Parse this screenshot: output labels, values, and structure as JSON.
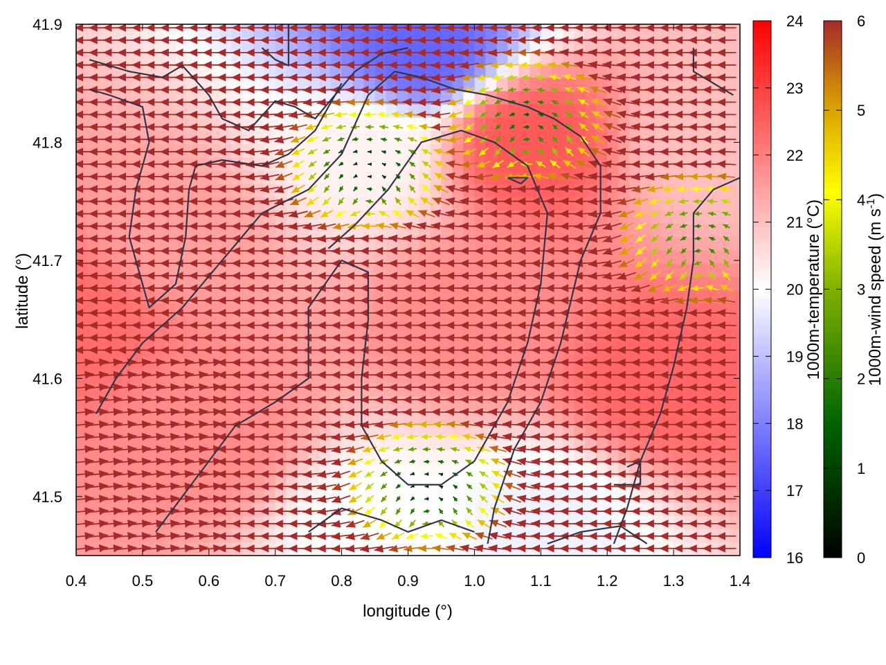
{
  "chart_data": {
    "type": "heatmap",
    "xlabel": "longitude (°)",
    "ylabel": "latitude (°)",
    "xlim": [
      0.4,
      1.4
    ],
    "ylim": [
      41.45,
      41.9
    ],
    "x_ticks": [
      "0.4",
      "0.5",
      "0.6",
      "0.7",
      "0.8",
      "0.9",
      "1.0",
      "1.1",
      "1.2",
      "1.3",
      "1.4"
    ],
    "y_ticks": [
      "41.5",
      "41.6",
      "41.7",
      "41.8",
      "41.9"
    ],
    "temperature_colorbar": {
      "label": "1000m-temperature (°C)",
      "range": [
        16,
        24
      ],
      "ticks": [
        "16",
        "17",
        "18",
        "19",
        "20",
        "21",
        "22",
        "23",
        "24"
      ],
      "colors": [
        "#0000ff",
        "#ffffff",
        "#ff0000"
      ]
    },
    "wind_colorbar": {
      "label_prefix": "1000m-wind speed (m s",
      "label_exp": "-1",
      "label_suffix": ")",
      "range": [
        0,
        6
      ],
      "ticks": [
        "0",
        "1",
        "2",
        "3",
        "4",
        "5",
        "6"
      ],
      "colors": [
        "#000000",
        "#006400",
        "#7fb000",
        "#ffff00",
        "#d9a000",
        "#a52a2a"
      ]
    },
    "temperature_field": [
      {
        "x": 0.4,
        "y": 41.65,
        "value": 22.3
      },
      {
        "x": 0.6,
        "y": 41.55,
        "value": 21.8
      },
      {
        "x": 0.92,
        "y": 41.88,
        "value": 17.6
      },
      {
        "x": 0.83,
        "y": 41.79,
        "value": 20.2
      },
      {
        "x": 1.08,
        "y": 41.8,
        "value": 22.6
      },
      {
        "x": 1.28,
        "y": 41.6,
        "value": 22.4
      },
      {
        "x": 1.1,
        "y": 41.48,
        "value": 19.8
      },
      {
        "x": 0.85,
        "y": 41.48,
        "value": 20.0
      },
      {
        "x": 0.55,
        "y": 41.72,
        "value": 21.5
      },
      {
        "x": 1.0,
        "y": 41.65,
        "value": 21.8
      },
      {
        "x": 1.35,
        "y": 41.8,
        "value": 21.0
      }
    ],
    "wind_field_centers": [
      {
        "x": 0.84,
        "y": 41.78,
        "speed": 0.5
      },
      {
        "x": 1.08,
        "y": 41.82,
        "speed": 1.2
      },
      {
        "x": 0.93,
        "y": 41.51,
        "speed": 0.6
      },
      {
        "x": 1.34,
        "y": 41.72,
        "speed": 1.5
      }
    ],
    "coastline_segments": [
      [
        [
          0.42,
          41.87
        ],
        [
          0.48,
          41.86
        ],
        [
          0.53,
          41.855
        ],
        [
          0.56,
          41.865
        ],
        [
          0.6,
          41.84
        ],
        [
          0.62,
          41.82
        ],
        [
          0.66,
          41.81
        ],
        [
          0.7,
          41.835
        ],
        [
          0.73,
          41.83
        ],
        [
          0.76,
          41.82
        ],
        [
          0.79,
          41.84
        ],
        [
          0.82,
          41.86
        ],
        [
          0.86,
          41.875
        ],
        [
          0.9,
          41.88
        ]
      ],
      [
        [
          0.42,
          41.845
        ],
        [
          0.45,
          41.84
        ],
        [
          0.5,
          41.83
        ],
        [
          0.51,
          41.8
        ],
        [
          0.49,
          41.76
        ],
        [
          0.48,
          41.72
        ],
        [
          0.495,
          41.69
        ],
        [
          0.51,
          41.66
        ],
        [
          0.53,
          41.67
        ],
        [
          0.55,
          41.68
        ],
        [
          0.565,
          41.72
        ],
        [
          0.57,
          41.76
        ],
        [
          0.58,
          41.78
        ],
        [
          0.62,
          41.785
        ],
        [
          0.68,
          41.78
        ],
        [
          0.72,
          41.79
        ],
        [
          0.76,
          41.81
        ],
        [
          0.8,
          41.85
        ]
      ],
      [
        [
          0.43,
          41.57
        ],
        [
          0.46,
          41.6
        ],
        [
          0.5,
          41.63
        ],
        [
          0.56,
          41.66
        ],
        [
          0.62,
          41.7
        ],
        [
          0.68,
          41.74
        ],
        [
          0.75,
          41.76
        ],
        [
          0.8,
          41.79
        ],
        [
          0.84,
          41.84
        ],
        [
          0.88,
          41.86
        ],
        [
          0.92,
          41.855
        ],
        [
          0.97,
          41.845
        ],
        [
          1.02,
          41.84
        ],
        [
          1.08,
          41.83
        ],
        [
          1.12,
          41.82
        ],
        [
          1.16,
          41.805
        ],
        [
          1.19,
          41.78
        ],
        [
          1.19,
          41.74
        ],
        [
          1.16,
          41.7
        ],
        [
          1.13,
          41.63
        ],
        [
          1.1,
          41.58
        ],
        [
          1.06,
          41.54
        ],
        [
          1.03,
          41.49
        ],
        [
          1.02,
          41.46
        ]
      ],
      [
        [
          0.52,
          41.47
        ],
        [
          0.56,
          41.5
        ],
        [
          0.6,
          41.53
        ],
        [
          0.64,
          41.56
        ],
        [
          0.7,
          41.58
        ],
        [
          0.75,
          41.6
        ],
        [
          0.75,
          41.66
        ],
        [
          0.8,
          41.7
        ],
        [
          0.84,
          41.69
        ],
        [
          0.84,
          41.65
        ],
        [
          0.83,
          41.6
        ],
        [
          0.83,
          41.56
        ],
        [
          0.86,
          41.53
        ],
        [
          0.9,
          41.51
        ],
        [
          0.95,
          41.51
        ],
        [
          1.0,
          41.53
        ],
        [
          1.05,
          41.58
        ],
        [
          1.08,
          41.63
        ],
        [
          1.1,
          41.68
        ],
        [
          1.11,
          41.74
        ],
        [
          1.08,
          41.78
        ],
        [
          1.03,
          41.8
        ],
        [
          0.98,
          41.81
        ],
        [
          0.92,
          41.8
        ],
        [
          0.87,
          41.76
        ],
        [
          0.82,
          41.73
        ],
        [
          0.78,
          41.71
        ]
      ],
      [
        [
          1.21,
          41.46
        ],
        [
          1.23,
          41.49
        ],
        [
          1.25,
          41.53
        ],
        [
          1.28,
          41.57
        ],
        [
          1.3,
          41.61
        ],
        [
          1.32,
          41.66
        ],
        [
          1.33,
          41.7
        ],
        [
          1.33,
          41.74
        ],
        [
          1.36,
          41.76
        ],
        [
          1.4,
          41.77
        ]
      ],
      [
        [
          0.75,
          41.47
        ],
        [
          0.8,
          41.49
        ],
        [
          0.86,
          41.48
        ],
        [
          0.9,
          41.47
        ],
        [
          0.95,
          41.48
        ],
        [
          1.0,
          41.47
        ]
      ],
      [
        [
          1.11,
          41.46
        ],
        [
          1.16,
          41.47
        ],
        [
          1.22,
          41.475
        ],
        [
          1.26,
          41.46
        ]
      ],
      [
        [
          1.21,
          41.51
        ],
        [
          1.25,
          41.51
        ],
        [
          1.25,
          41.53
        ],
        [
          1.23,
          41.525
        ]
      ],
      [
        [
          1.05,
          41.77
        ],
        [
          1.07,
          41.765
        ],
        [
          1.08,
          41.77
        ],
        [
          1.05,
          41.77
        ]
      ],
      [
        [
          1.33,
          41.88
        ],
        [
          1.33,
          41.86
        ],
        [
          1.36,
          41.85
        ],
        [
          1.39,
          41.84
        ]
      ],
      [
        [
          0.68,
          41.88
        ],
        [
          0.7,
          41.87
        ],
        [
          0.72,
          41.865
        ],
        [
          0.72,
          41.9
        ]
      ]
    ]
  }
}
